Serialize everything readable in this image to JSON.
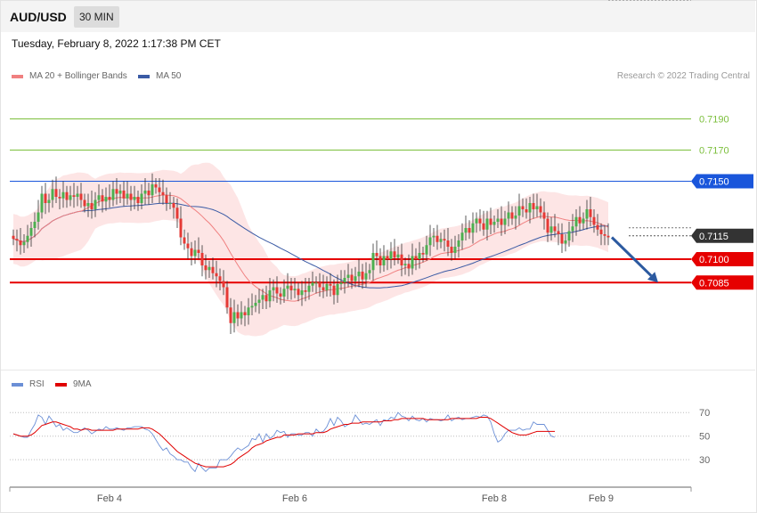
{
  "header": {
    "symbol": "AUD/USD",
    "timeframe": "30 MIN",
    "datetime": "Tuesday, February 8, 2022 1:17:38 PM CET"
  },
  "legend": {
    "ma20_label": "MA 20 + Bollinger Bands",
    "ma50_label": "MA 50",
    "credit": "Research © 2022 Trading Central"
  },
  "rsi_legend": {
    "rsi_label": "RSI",
    "ma_label": "9MA"
  },
  "colors": {
    "up": "#4caf50",
    "down": "#e53935",
    "bollinger": "#fde0e0",
    "ma20": "#f08080",
    "ma50": "#3b5ba5",
    "support": "#e60000",
    "resistance_green": "#7cbf3c",
    "resistance_blue": "#1a56db",
    "current": "#333333",
    "rsi": "#6b8fd6",
    "rsi_ma": "#e00000"
  },
  "levels": [
    {
      "value": 0.719,
      "label": "0.7190",
      "kind": "target"
    },
    {
      "value": 0.717,
      "label": "0.7170",
      "kind": "target"
    },
    {
      "value": 0.715,
      "label": "0.7150",
      "kind": "pivot"
    },
    {
      "value": 0.7115,
      "label": "0.7115",
      "kind": "current"
    },
    {
      "value": 0.71,
      "label": "0.7100",
      "kind": "support"
    },
    {
      "value": 0.7085,
      "label": "0.7085",
      "kind": "support"
    }
  ],
  "chart_data": [
    {
      "type": "candlestick",
      "title": "AUD/USD 30 MIN",
      "x_tick_labels": [
        "Feb 4",
        "Feb 6",
        "Feb 8",
        "Feb 9"
      ],
      "x_tick_index": [
        27,
        79,
        135,
        165
      ],
      "ylim": [
        0.7032,
        0.7212
      ],
      "arrow": {
        "from_index": 168,
        "from": 0.7114,
        "to_index": 181,
        "to": 0.7085
      },
      "closes": [
        0.7113,
        0.7112,
        0.7109,
        0.7111,
        0.7115,
        0.712,
        0.7124,
        0.713,
        0.7142,
        0.7136,
        0.7138,
        0.7145,
        0.714,
        0.7139,
        0.7143,
        0.7138,
        0.7141,
        0.714,
        0.7142,
        0.7138,
        0.7134,
        0.7136,
        0.7132,
        0.7138,
        0.7141,
        0.7137,
        0.714,
        0.7138,
        0.7145,
        0.7142,
        0.7144,
        0.7139,
        0.7142,
        0.7138,
        0.714,
        0.7136,
        0.7142,
        0.7144,
        0.7141,
        0.7148,
        0.7146,
        0.7143,
        0.7141,
        0.7136,
        0.7136,
        0.7133,
        0.7126,
        0.7114,
        0.711,
        0.7107,
        0.7102,
        0.7106,
        0.7104,
        0.7096,
        0.7093,
        0.7095,
        0.7091,
        0.7089,
        0.7086,
        0.7082,
        0.7069,
        0.7059,
        0.7066,
        0.7062,
        0.7066,
        0.7064,
        0.7069,
        0.707,
        0.7072,
        0.7074,
        0.7077,
        0.7073,
        0.708,
        0.7082,
        0.7078,
        0.7076,
        0.7081,
        0.7083,
        0.708,
        0.7081,
        0.7077,
        0.708,
        0.7079,
        0.7083,
        0.7085,
        0.7085,
        0.7082,
        0.708,
        0.7084,
        0.7083,
        0.7077,
        0.7084,
        0.7085,
        0.7088,
        0.709,
        0.7086,
        0.7089,
        0.7092,
        0.7087,
        0.7091,
        0.7093,
        0.7104,
        0.7102,
        0.7096,
        0.7102,
        0.71,
        0.7105,
        0.7101,
        0.7103,
        0.7096,
        0.7097,
        0.7094,
        0.7102,
        0.71,
        0.7104,
        0.7103,
        0.7109,
        0.7114,
        0.7115,
        0.7111,
        0.7113,
        0.7112,
        0.7108,
        0.7104,
        0.7108,
        0.7112,
        0.7117,
        0.712,
        0.7117,
        0.7123,
        0.7126,
        0.7123,
        0.7119,
        0.7126,
        0.7122,
        0.7124,
        0.7126,
        0.7122,
        0.7126,
        0.713,
        0.7126,
        0.7128,
        0.7134,
        0.7132,
        0.713,
        0.7136,
        0.7132,
        0.7134,
        0.713,
        0.7126,
        0.7117,
        0.7121,
        0.7118,
        0.7116,
        0.711,
        0.7112,
        0.7118,
        0.7121,
        0.7127,
        0.7123,
        0.7126,
        0.7132,
        0.7127,
        0.7122,
        0.7119,
        0.7116,
        0.7115,
        0.7114
      ],
      "rsi": [
        52,
        51,
        50,
        49,
        49,
        55,
        60,
        68,
        66,
        60,
        67,
        63,
        58,
        60,
        55,
        57,
        55,
        53,
        53,
        55,
        57,
        55,
        52,
        54,
        56,
        55,
        58,
        56,
        56,
        57,
        56,
        55,
        57,
        57,
        58,
        58,
        58,
        56,
        55,
        52,
        47,
        42,
        38,
        40,
        35,
        33,
        30,
        30,
        28,
        28,
        23,
        20,
        27,
        23,
        20,
        23,
        23,
        23,
        30,
        30,
        30,
        33,
        37,
        40,
        38,
        40,
        42,
        48,
        47,
        52,
        45,
        52,
        48,
        50,
        55,
        53,
        54,
        49,
        52,
        52,
        51,
        51,
        53,
        53,
        50,
        56,
        53,
        54,
        58,
        65,
        59,
        66,
        63,
        58,
        60,
        61,
        68,
        64,
        60,
        61,
        60,
        62,
        64,
        59,
        64,
        63,
        66,
        65,
        70,
        67,
        66,
        63,
        67,
        64,
        63,
        65,
        62,
        65,
        64,
        64,
        63,
        64,
        68,
        63,
        65,
        66,
        64,
        65,
        65,
        66,
        67,
        66,
        68,
        67,
        62,
        52,
        45,
        47,
        52,
        55,
        55,
        55,
        57,
        55,
        56,
        56,
        62,
        60,
        60,
        60,
        55,
        50,
        49
      ],
      "rsi_ma": [
        52,
        51,
        50,
        50,
        50,
        51,
        53,
        56,
        59,
        60,
        61,
        62,
        62,
        61,
        60,
        59,
        58,
        56,
        56,
        55,
        56,
        56,
        55,
        55,
        55,
        55,
        55,
        55,
        55,
        56,
        56,
        56,
        56,
        56,
        56,
        56,
        57,
        57,
        57,
        56,
        54,
        52,
        49,
        46,
        43,
        40,
        37,
        35,
        33,
        31,
        29,
        27,
        26,
        25,
        24,
        24,
        24,
        24,
        24,
        24,
        25,
        26,
        28,
        31,
        33,
        35,
        37,
        40,
        42,
        43,
        44,
        46,
        47,
        48,
        49,
        49,
        51,
        51,
        51,
        51,
        52,
        52,
        52,
        52,
        52,
        53,
        53,
        53,
        54,
        56,
        57,
        58,
        59,
        60,
        60,
        61,
        61,
        61,
        62,
        62,
        62,
        62,
        62,
        62,
        63,
        63,
        63,
        64,
        64,
        65,
        65,
        65,
        65,
        65,
        65,
        65,
        64,
        64,
        64,
        64,
        64,
        64,
        64,
        65,
        65,
        65,
        65,
        65,
        65,
        65,
        65,
        66,
        66,
        66,
        65,
        63,
        61,
        59,
        57,
        55,
        53,
        52,
        51,
        51,
        51,
        52,
        53,
        54,
        54,
        54,
        54,
        54,
        54
      ],
      "rsi_levels": [
        70,
        50,
        30
      ],
      "rsi_ylim": [
        12,
        80
      ]
    }
  ]
}
